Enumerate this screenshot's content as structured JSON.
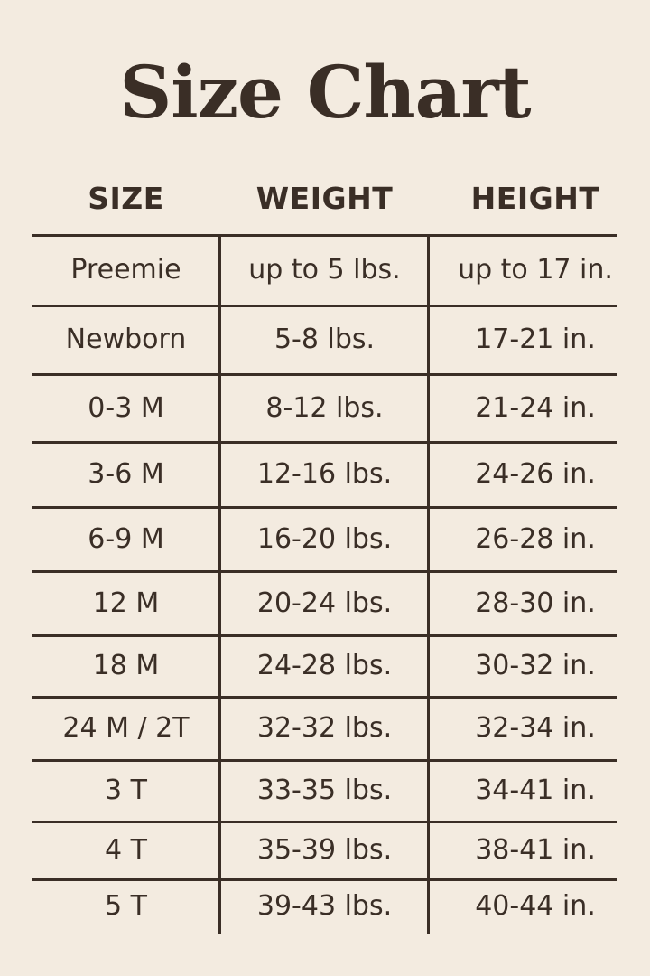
{
  "title": "Size Chart",
  "headers": [
    "SIZE",
    "WEIGHT",
    "HEIGHT"
  ],
  "rows": [
    [
      "Preemie",
      "up to 5 lbs.",
      "up to 17 in."
    ],
    [
      "Newborn",
      "5-8 lbs.",
      "17-21 in."
    ],
    [
      "0-3 M",
      "8-12 lbs.",
      "21-24 in."
    ],
    [
      "3-6 M",
      "12-16 lbs.",
      "24-26 in."
    ],
    [
      "6-9 M",
      "16-20 lbs.",
      "26-28 in."
    ],
    [
      "12 M",
      "20-24 lbs.",
      "28-30 in."
    ],
    [
      "18 M",
      "24-28 lbs.",
      "30-32 in."
    ],
    [
      "24 M / 2T",
      "32-32 lbs.",
      "32-34 in."
    ],
    [
      "3 T",
      "33-35 lbs.",
      "34-41 in."
    ],
    [
      "4 T",
      "35-39 lbs.",
      "38-41 in."
    ],
    [
      "5 T",
      "39-43 lbs.",
      "40-44 in."
    ]
  ],
  "colors": {
    "background": "#f3ebe0",
    "text": "#3a2e26"
  }
}
